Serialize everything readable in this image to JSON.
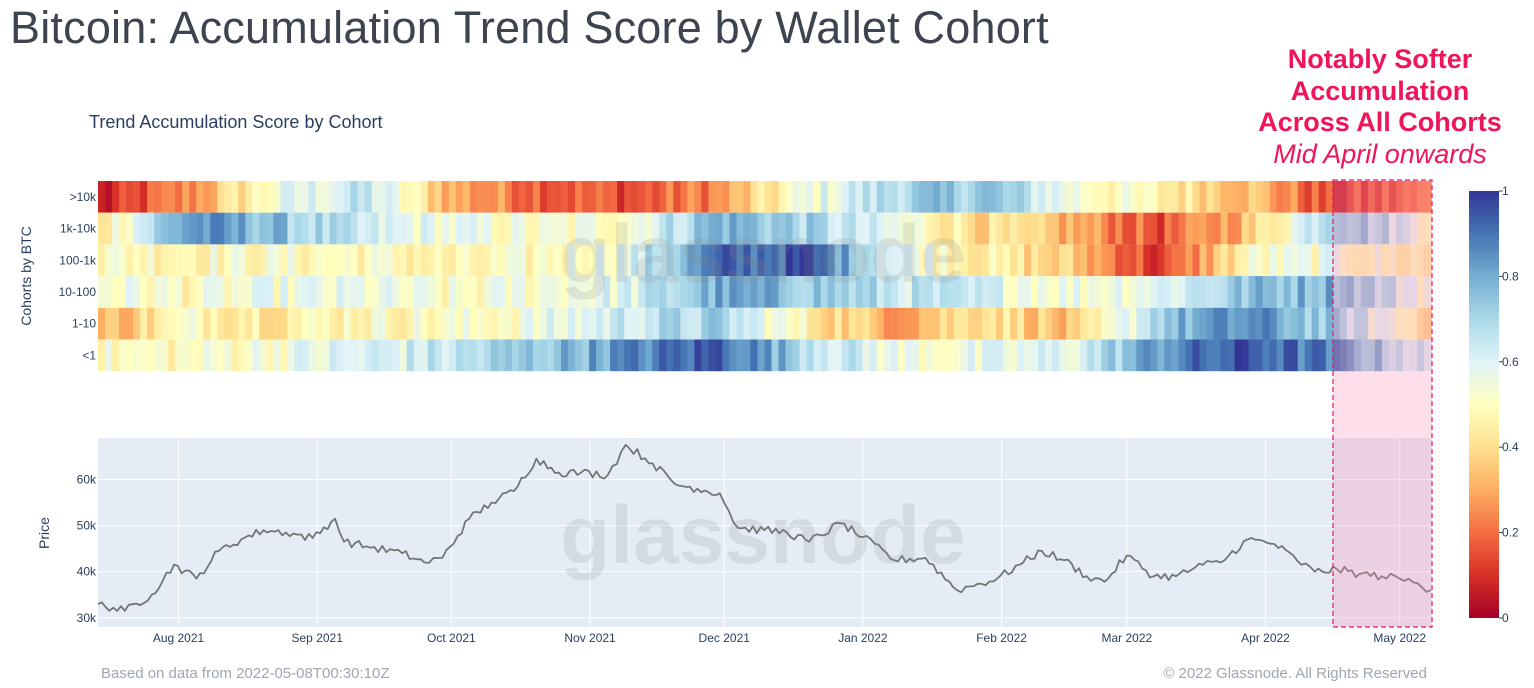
{
  "title": "Bitcoin: Accumulation Trend Score by Wallet Cohort",
  "annotation": {
    "line1": "Notably Softer",
    "line2": "Accumulation",
    "line3": "Across All Cohorts",
    "line4": "Mid April onwards",
    "color": "#f0145a"
  },
  "watermark": "glassnode",
  "footer": {
    "left": "Based on data from 2022-05-08T00:30:10Z",
    "right": "© 2022 Glassnode. All Rights Reserved"
  },
  "chart_data": [
    {
      "type": "heatmap",
      "title": "Trend Accumulation Score by Cohort",
      "ylabel": "Cohorts by BTC",
      "cohorts": [
        ">10k",
        "1k-10k",
        "100-1k",
        "10-100",
        "1-10",
        "<1"
      ],
      "x_range": [
        "2021-07-14",
        "2022-05-08"
      ],
      "colorscale": {
        "min": 0,
        "max": 1,
        "ticks": [
          0,
          0.2,
          0.4,
          0.6,
          0.8,
          1
        ],
        "colors": [
          "#a50026",
          "#d73027",
          "#f46d43",
          "#fdae61",
          "#fee090",
          "#ffffbf",
          "#e0f3f8",
          "#abd9e9",
          "#74add1",
          "#4575b4",
          "#313695"
        ]
      },
      "samples_per_row": 16,
      "scores": {
        ">10k": [
          0.05,
          0.25,
          0.55,
          0.65,
          0.3,
          0.2,
          0.15,
          0.25,
          0.55,
          0.7,
          0.75,
          0.55,
          0.45,
          0.35,
          0.1,
          0.2
        ],
        "1k-10k": [
          0.45,
          0.85,
          0.75,
          0.6,
          0.55,
          0.5,
          0.55,
          0.8,
          0.7,
          0.55,
          0.4,
          0.3,
          0.15,
          0.35,
          0.8,
          0.55
        ],
        "100-1k": [
          0.5,
          0.5,
          0.5,
          0.5,
          0.45,
          0.5,
          0.6,
          0.9,
          0.95,
          0.6,
          0.45,
          0.35,
          0.1,
          0.5,
          0.55,
          0.45
        ],
        "10-100": [
          0.55,
          0.5,
          0.55,
          0.55,
          0.5,
          0.55,
          0.6,
          0.8,
          0.75,
          0.65,
          0.6,
          0.55,
          0.6,
          0.75,
          0.8,
          0.55
        ],
        "1-10": [
          0.3,
          0.5,
          0.45,
          0.5,
          0.5,
          0.55,
          0.65,
          0.7,
          0.45,
          0.3,
          0.45,
          0.3,
          0.75,
          0.85,
          0.7,
          0.45
        ],
        "<1": [
          0.5,
          0.5,
          0.55,
          0.6,
          0.65,
          0.75,
          0.85,
          0.95,
          0.7,
          0.55,
          0.55,
          0.6,
          0.85,
          0.95,
          0.85,
          0.6
        ]
      },
      "highlight": {
        "label": "Mid April onwards",
        "from": "2022-04-17",
        "to": "2022-05-08"
      }
    },
    {
      "type": "line",
      "ylabel": "Price",
      "xlabel": "",
      "y_ticks": [
        30000,
        40000,
        50000,
        60000
      ],
      "y_tick_labels": [
        "30k",
        "40k",
        "50k",
        "60k"
      ],
      "ylim": [
        28000,
        69000
      ],
      "x_ticks": [
        "Aug 2021",
        "Sep 2021",
        "Oct 2021",
        "Nov 2021",
        "Dec 2021",
        "Jan 2022",
        "Feb 2022",
        "Mar 2022",
        "Apr 2022",
        "May 2022"
      ],
      "grid": true,
      "line_color": "#757575",
      "background": "#e5ecf6",
      "series": [
        {
          "x": [
            "2021-07-14",
            "2021-07-20",
            "2021-07-26",
            "2021-07-31",
            "2021-08-05",
            "2021-08-10",
            "2021-08-15",
            "2021-08-20",
            "2021-08-25",
            "2021-08-31",
            "2021-09-05",
            "2021-09-07",
            "2021-09-12",
            "2021-09-20",
            "2021-09-25",
            "2021-09-29",
            "2021-10-05",
            "2021-10-10",
            "2021-10-15",
            "2021-10-20",
            "2021-10-25",
            "2021-10-30",
            "2021-11-05",
            "2021-11-09",
            "2021-11-15",
            "2021-11-20",
            "2021-11-25",
            "2021-11-30",
            "2021-12-04",
            "2021-12-10",
            "2021-12-15",
            "2021-12-20",
            "2021-12-27",
            "2022-01-01",
            "2022-01-08",
            "2022-01-15",
            "2022-01-22",
            "2022-01-25",
            "2022-01-31",
            "2022-02-05",
            "2022-02-10",
            "2022-02-15",
            "2022-02-20",
            "2022-02-24",
            "2022-03-01",
            "2022-03-07",
            "2022-03-12",
            "2022-03-18",
            "2022-03-22",
            "2022-03-28",
            "2022-04-03",
            "2022-04-08",
            "2022-04-12",
            "2022-04-17",
            "2022-04-22",
            "2022-04-27",
            "2022-05-01",
            "2022-05-05",
            "2022-05-08"
          ],
          "y": [
            33000,
            31500,
            35000,
            41500,
            38500,
            44500,
            47000,
            49000,
            48500,
            47300,
            51500,
            46500,
            45500,
            44000,
            42000,
            43000,
            51500,
            55000,
            57500,
            64500,
            61500,
            61500,
            61000,
            67500,
            63500,
            59000,
            58000,
            57000,
            49500,
            49000,
            48500,
            46500,
            50500,
            47500,
            42500,
            43000,
            36000,
            36800,
            38500,
            41500,
            44500,
            42500,
            39000,
            37800,
            43500,
            39000,
            39000,
            41500,
            42000,
            47000,
            46000,
            42500,
            40000,
            40500,
            39500,
            39000,
            38500,
            37500,
            36000
          ]
        }
      ]
    }
  ]
}
